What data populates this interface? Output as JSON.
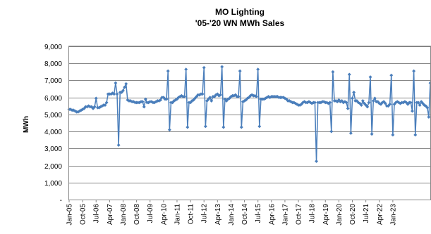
{
  "chart_data": {
    "type": "line",
    "title": "MO Lighting",
    "subtitle": "'05-'20 WN MWh Sales",
    "xlabel": "",
    "ylabel": "MWh",
    "ylim": [
      0,
      9000
    ],
    "yticks": [
      0,
      1000,
      2000,
      3000,
      4000,
      5000,
      6000,
      7000,
      8000,
      9000
    ],
    "ytick_labels": [
      "-",
      "1,000",
      "2,000",
      "3,000",
      "4,000",
      "5,000",
      "6,000",
      "7,000",
      "8,000",
      "9,000"
    ],
    "x_start": "Jan-05",
    "x_tick_interval_months": 9,
    "xtick_labels": [
      "Jan-05",
      "Oct-05",
      "Jul-06",
      "Apr-07",
      "Jan-08",
      "Oct-08",
      "Jul-09",
      "Apr-10",
      "Jan-11",
      "Oct-11",
      "Jul-12",
      "Apr-13",
      "Jan-14",
      "Oct-14",
      "Jul-15",
      "Apr-16",
      "Jan-17",
      "Oct-17",
      "Jul-18",
      "Apr-19",
      "Jan-20",
      "Oct-20",
      "Jul-21",
      "Apr-22",
      "Jan-23"
    ],
    "grid": true,
    "legend": "none",
    "series_color": "#4a7ebb",
    "series": [
      {
        "values": [
          5300,
          5300,
          5250,
          5250,
          5200,
          5150,
          5150,
          5200,
          5250,
          5300,
          5350,
          5450,
          5450,
          5500,
          5450,
          5450,
          5350,
          5450,
          5950,
          5400,
          5400,
          5450,
          5500,
          5550,
          5550,
          5700,
          6200,
          6200,
          6200,
          6250,
          6200,
          6850,
          6200,
          3200,
          6300,
          6300,
          6400,
          6600,
          6800,
          5850,
          5800,
          5800,
          5750,
          5750,
          5700,
          5700,
          5700,
          5700,
          5750,
          5750,
          5450,
          5900,
          5700,
          5700,
          5750,
          5750,
          5700,
          5700,
          5750,
          5800,
          5800,
          5850,
          6000,
          6000,
          5900,
          5900,
          7550,
          4100,
          5700,
          5700,
          5800,
          5850,
          5900,
          6000,
          6050,
          6100,
          6050,
          6050,
          7650,
          4250,
          5700,
          5700,
          5800,
          5850,
          5950,
          6050,
          6150,
          6150,
          6200,
          6200,
          7750,
          4300,
          5800,
          5900,
          6000,
          5800,
          6050,
          6050,
          6150,
          6200,
          6100,
          6150,
          7800,
          4250,
          5900,
          5800,
          5900,
          5950,
          6050,
          6100,
          6100,
          6150,
          6050,
          6050,
          7550,
          4250,
          5750,
          5800,
          5850,
          5950,
          6000,
          6100,
          6150,
          6100,
          6100,
          6050,
          7650,
          4300,
          5900,
          5900,
          5900,
          5950,
          6000,
          6050,
          6000,
          6050,
          6050,
          6050,
          6050,
          6050,
          6000,
          6000,
          6000,
          6000,
          5950,
          5900,
          5800,
          5800,
          5750,
          5700,
          5700,
          5650,
          5600,
          5550,
          5550,
          5600,
          5700,
          5750,
          5700,
          5700,
          5750,
          5700,
          5650,
          5700,
          5700,
          2250,
          5700,
          5700,
          5700,
          5750,
          5750,
          5700,
          5700,
          5650,
          5700,
          4000,
          7500,
          5800,
          5800,
          5750,
          5850,
          5750,
          5800,
          5700,
          5750,
          5700,
          5350,
          7350,
          3900,
          5950,
          6300,
          5800,
          5800,
          5700,
          5650,
          5550,
          5800,
          5650,
          5550,
          5450,
          5700,
          7200,
          3850,
          5800,
          5950,
          5750,
          5750,
          5650,
          5600,
          5700,
          5750,
          5650,
          5500,
          5500,
          5600,
          7300,
          3800,
          5600,
          5700,
          5750,
          5700,
          5650,
          5700,
          5700,
          5750,
          5700,
          5600,
          5700,
          5700,
          5200,
          7550,
          3800,
          5700,
          5700,
          5550,
          5750,
          5650,
          5550,
          5500,
          5400,
          4850,
          6850
        ]
      }
    ]
  }
}
